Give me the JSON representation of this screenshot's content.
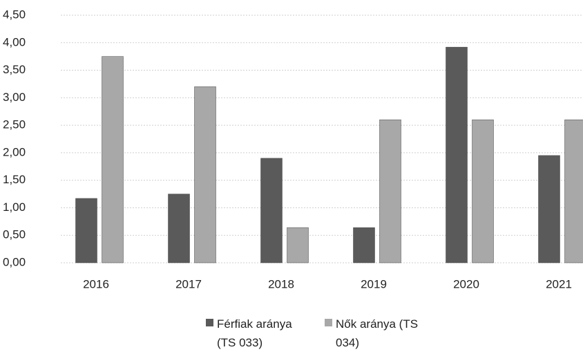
{
  "chart_data": {
    "type": "bar",
    "categories": [
      "2016",
      "2017",
      "2018",
      "2019",
      "2020",
      "2021"
    ],
    "series": [
      {
        "name": "Férfiak aránya (TS 033)",
        "color": "#5a5a5a",
        "values": [
          1.17,
          1.25,
          1.9,
          0.64,
          3.92,
          1.95
        ]
      },
      {
        "name": "Nők aránya (TS 034)",
        "color": "#a8a8a8",
        "values": [
          3.75,
          3.2,
          0.64,
          2.6,
          2.6,
          2.6
        ]
      }
    ],
    "ylim": [
      0,
      4.5
    ],
    "yticks": [
      {
        "value": 0,
        "label": "0,00"
      },
      {
        "value": 0.5,
        "label": "0,50"
      },
      {
        "value": 1,
        "label": "1,00"
      },
      {
        "value": 1.5,
        "label": "1,50"
      },
      {
        "value": 2,
        "label": "2,00"
      },
      {
        "value": 2.5,
        "label": "2,50"
      },
      {
        "value": 3,
        "label": "3,00"
      },
      {
        "value": 3.5,
        "label": "3,50"
      },
      {
        "value": 4,
        "label": "4,00"
      },
      {
        "value": 4.5,
        "label": "4,50"
      }
    ],
    "grid": true,
    "legend": "bottom"
  }
}
